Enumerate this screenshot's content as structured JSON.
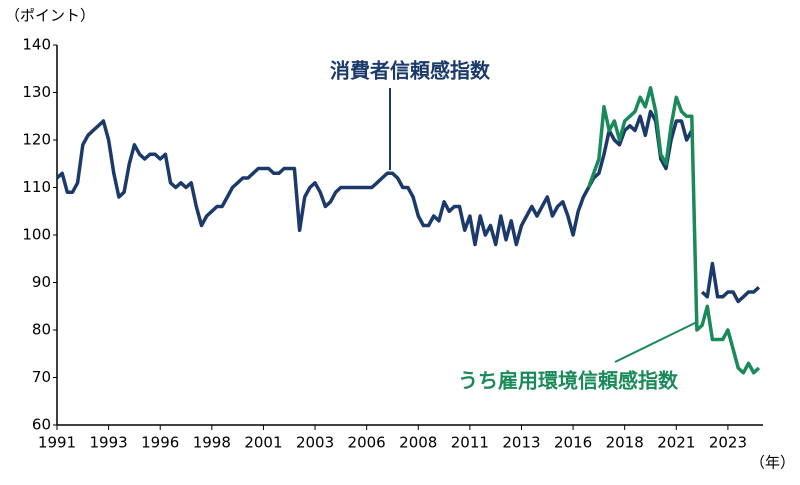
{
  "chart_data": {
    "type": "line",
    "y_label": "（ポイント）",
    "x_label": "（年）",
    "annotations": [
      "消費者信頼感指数",
      "うち雇用環境信頼感指数"
    ],
    "xlim": [
      1991,
      2025.2
    ],
    "ylim": [
      60,
      140
    ],
    "yticks": [
      60,
      70,
      80,
      90,
      100,
      110,
      120,
      130,
      140
    ],
    "xticks": [
      {
        "value": 1991,
        "label": "1991"
      },
      {
        "value": 1993.5,
        "label": "1993"
      },
      {
        "value": 1996,
        "label": "1996"
      },
      {
        "value": 1998.5,
        "label": "1998"
      },
      {
        "value": 2001,
        "label": "2001"
      },
      {
        "value": 2003.5,
        "label": "2003"
      },
      {
        "value": 2006,
        "label": "2006"
      },
      {
        "value": 2008.5,
        "label": "2008"
      },
      {
        "value": 2011,
        "label": "2011"
      },
      {
        "value": 2013.5,
        "label": "2013"
      },
      {
        "value": 2016,
        "label": "2016"
      },
      {
        "value": 2018.5,
        "label": "2018"
      },
      {
        "value": 2021,
        "label": "2021"
      },
      {
        "value": 2023.5,
        "label": "2023"
      }
    ],
    "grid": false,
    "x": [
      1991,
      1991.25,
      1991.5,
      1991.75,
      1992,
      1992.25,
      1992.5,
      1992.75,
      1993,
      1993.25,
      1993.5,
      1993.75,
      1994,
      1994.25,
      1994.5,
      1994.75,
      1995,
      1995.25,
      1995.5,
      1995.75,
      1996,
      1996.25,
      1996.5,
      1996.75,
      1997,
      1997.25,
      1997.5,
      1997.75,
      1998,
      1998.25,
      1998.5,
      1998.75,
      1999,
      1999.25,
      1999.5,
      1999.75,
      2000,
      2000.25,
      2000.5,
      2000.75,
      2001,
      2001.25,
      2001.5,
      2001.75,
      2002,
      2002.25,
      2002.5,
      2002.75,
      2003,
      2003.25,
      2003.5,
      2003.75,
      2004,
      2004.25,
      2004.5,
      2004.75,
      2005,
      2005.25,
      2005.5,
      2005.75,
      2006,
      2006.25,
      2006.5,
      2006.75,
      2007,
      2007.25,
      2007.5,
      2007.75,
      2008,
      2008.25,
      2008.5,
      2008.75,
      2009,
      2009.25,
      2009.5,
      2009.75,
      2010,
      2010.25,
      2010.5,
      2010.75,
      2011,
      2011.25,
      2011.5,
      2011.75,
      2012,
      2012.25,
      2012.5,
      2012.75,
      2013,
      2013.25,
      2013.5,
      2013.75,
      2014,
      2014.25,
      2014.5,
      2014.75,
      2015,
      2015.25,
      2015.5,
      2015.75,
      2016,
      2016.25,
      2016.5,
      2016.75,
      2017,
      2017.25,
      2017.5,
      2017.75,
      2018,
      2018.25,
      2018.5,
      2018.75,
      2019,
      2019.25,
      2019.5,
      2019.75,
      2020,
      2020.25,
      2020.5,
      2020.75,
      2021,
      2021.25,
      2021.5,
      2021.75,
      2022,
      2022.25,
      2022.5,
      2022.75,
      2023,
      2023.25,
      2023.5,
      2023.75,
      2024,
      2024.25,
      2024.5,
      2024.75,
      2025
    ],
    "series": [
      {
        "name": "消費者信頼感指数",
        "color": "#1b3a6b",
        "values": [
          112,
          113,
          109,
          109,
          111,
          119,
          121,
          122,
          123,
          124,
          120,
          113,
          108,
          109,
          115,
          119,
          117,
          116,
          117,
          117,
          116,
          117,
          111,
          110,
          111,
          110,
          111,
          106,
          102,
          104,
          105,
          106,
          106,
          108,
          110,
          111,
          112,
          112,
          113,
          114,
          114,
          114,
          113,
          113,
          114,
          114,
          114,
          101,
          108,
          110,
          111,
          109,
          106,
          107,
          109,
          110,
          110,
          110,
          110,
          110,
          110,
          110,
          111,
          112,
          113,
          113,
          112,
          110,
          110,
          108,
          104,
          102,
          102,
          104,
          103,
          107,
          105,
          106,
          106,
          101,
          104,
          98,
          104,
          100,
          102,
          98,
          104,
          99,
          103,
          98,
          102,
          104,
          106,
          104,
          106,
          108,
          104,
          106,
          107,
          104,
          100,
          105,
          108,
          110,
          112,
          113,
          117,
          122,
          120,
          119,
          122,
          123,
          122,
          125,
          121,
          126,
          124,
          116,
          114,
          120,
          124,
          124,
          120,
          122,
          null,
          88,
          87,
          94,
          87,
          87,
          88,
          88,
          86,
          87,
          88,
          88,
          89
        ]
      },
      {
        "name": "うち雇用環境信頼感指数",
        "color": "#1a8a5a",
        "values": [
          null,
          null,
          null,
          null,
          null,
          null,
          null,
          null,
          null,
          null,
          null,
          null,
          null,
          null,
          null,
          null,
          null,
          null,
          null,
          null,
          null,
          null,
          null,
          null,
          null,
          null,
          null,
          null,
          null,
          null,
          null,
          null,
          null,
          null,
          null,
          null,
          null,
          null,
          null,
          null,
          null,
          null,
          null,
          null,
          null,
          null,
          null,
          null,
          null,
          null,
          null,
          null,
          null,
          null,
          null,
          null,
          null,
          null,
          null,
          null,
          null,
          null,
          null,
          null,
          null,
          null,
          null,
          null,
          null,
          null,
          null,
          null,
          null,
          null,
          null,
          null,
          null,
          null,
          null,
          null,
          null,
          null,
          null,
          null,
          null,
          null,
          null,
          null,
          null,
          null,
          null,
          null,
          null,
          null,
          null,
          null,
          null,
          null,
          null,
          null,
          null,
          null,
          null,
          110,
          113,
          116,
          127,
          122,
          124,
          120,
          124,
          125,
          126,
          129,
          127,
          131,
          126,
          117,
          115,
          123,
          129,
          126,
          125,
          125,
          80,
          81,
          85,
          78,
          78,
          78,
          80,
          76,
          72,
          71,
          73,
          71,
          72
        ]
      }
    ]
  }
}
